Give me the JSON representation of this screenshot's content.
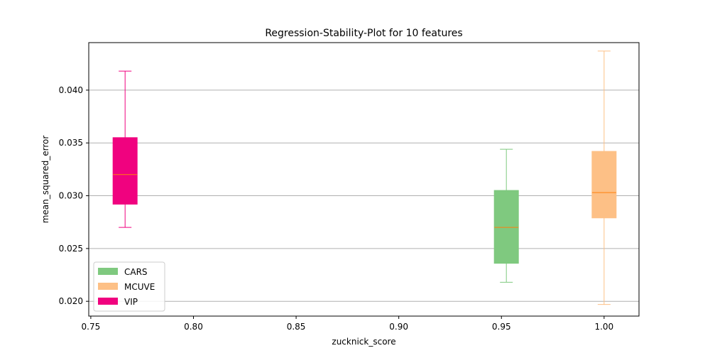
{
  "chart_data": {
    "type": "box",
    "title": "Regression-Stability-Plot for 10 features",
    "xlabel": "zucknick_score",
    "ylabel": "mean_squared_error",
    "xlim": [
      0.749,
      1.017
    ],
    "ylim": [
      0.0186,
      0.0445
    ],
    "x_ticks": [
      0.75,
      0.8,
      0.85,
      0.9,
      0.95,
      1.0
    ],
    "x_tick_labels": [
      "0.75",
      "0.80",
      "0.85",
      "0.90",
      "0.95",
      "1.00"
    ],
    "y_ticks": [
      0.02,
      0.025,
      0.03,
      0.035,
      0.04
    ],
    "y_tick_labels": [
      "0.020",
      "0.025",
      "0.030",
      "0.035",
      "0.040"
    ],
    "grid": "y-major",
    "legend_position": "lower-left",
    "series": [
      {
        "name": "VIP",
        "color": "#f0027f",
        "median_color": "#ff7f0e",
        "x": 0.7667,
        "whisker_low": 0.027,
        "q1": 0.0292,
        "median": 0.032,
        "q3": 0.0355,
        "whisker_high": 0.0418
      },
      {
        "name": "CARS",
        "color": "#7fc97f",
        "median_color": "#ff7f0e",
        "x": 0.9524,
        "whisker_low": 0.0218,
        "q1": 0.0236,
        "median": 0.027,
        "q3": 0.0305,
        "whisker_high": 0.0344
      },
      {
        "name": "MCUVE",
        "color": "#fdc086",
        "median_color": "#ff7f0e",
        "x": 1.0,
        "whisker_low": 0.0197,
        "q1": 0.0279,
        "median": 0.0303,
        "q3": 0.0342,
        "whisker_high": 0.0437
      }
    ],
    "legend": [
      {
        "label": "CARS",
        "color": "#7fc97f"
      },
      {
        "label": "MCUVE",
        "color": "#fdc086"
      },
      {
        "label": "VIP",
        "color": "#f0027f"
      }
    ]
  }
}
